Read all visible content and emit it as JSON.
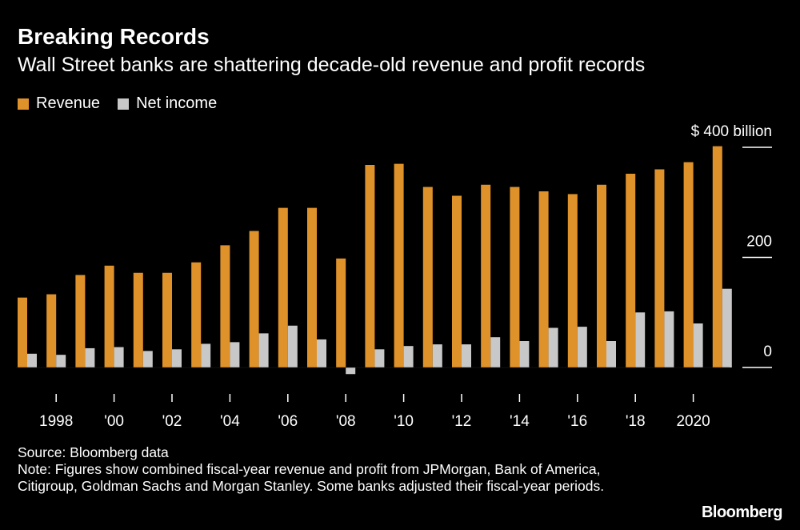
{
  "title": "Breaking Records",
  "subtitle": "Wall Street banks are shattering decade-old revenue and profit records",
  "legend": {
    "revenue": "Revenue",
    "net_income": "Net income"
  },
  "colors": {
    "revenue": "#e0922a",
    "net_income": "#c8c8c8",
    "background": "#000000",
    "axis": "#ffffff"
  },
  "chart_data": {
    "type": "bar",
    "title": "Breaking Records",
    "xlabel": "",
    "ylabel": "",
    "unit_label": "billion",
    "y_prefix": "$",
    "ylim": [
      -10,
      400
    ],
    "yticks": [
      0,
      200,
      400
    ],
    "categories": [
      1997,
      1998,
      1999,
      2000,
      2001,
      2002,
      2003,
      2004,
      2005,
      2006,
      2007,
      2008,
      2009,
      2010,
      2011,
      2012,
      2013,
      2014,
      2015,
      2016,
      2017,
      2018,
      2019,
      2020,
      2021
    ],
    "x_tick_labels": [
      {
        "year": 1998,
        "label": "1998"
      },
      {
        "year": 2000,
        "label": "'00"
      },
      {
        "year": 2002,
        "label": "'02"
      },
      {
        "year": 2004,
        "label": "'04"
      },
      {
        "year": 2006,
        "label": "'06"
      },
      {
        "year": 2008,
        "label": "'08"
      },
      {
        "year": 2010,
        "label": "'10"
      },
      {
        "year": 2012,
        "label": "'12"
      },
      {
        "year": 2014,
        "label": "'14"
      },
      {
        "year": 2016,
        "label": "'16"
      },
      {
        "year": 2018,
        "label": "'18"
      },
      {
        "year": 2020,
        "label": "2020"
      }
    ],
    "series": [
      {
        "name": "Revenue",
        "values": [
          127,
          133,
          168,
          185,
          172,
          172,
          191,
          222,
          248,
          290,
          290,
          198,
          368,
          370,
          328,
          312,
          332,
          328,
          320,
          315,
          332,
          352,
          360,
          373,
          402
        ]
      },
      {
        "name": "Net income",
        "values": [
          25,
          23,
          35,
          37,
          30,
          33,
          43,
          46,
          62,
          76,
          51,
          -12,
          33,
          39,
          42,
          42,
          55,
          48,
          72,
          74,
          48,
          100,
          102,
          80,
          143
        ]
      }
    ]
  },
  "footer": {
    "source": "Source: Bloomberg data",
    "note": "Note: Figures show combined fiscal-year revenue and profit from JPMorgan, Bank of America, Citigroup, Goldman Sachs and Morgan Stanley. Some banks adjusted their fiscal-year periods.",
    "brand": "Bloomberg"
  }
}
